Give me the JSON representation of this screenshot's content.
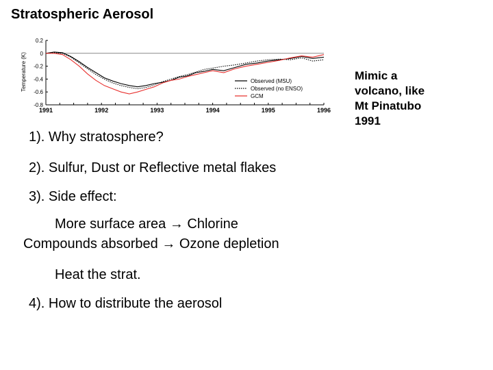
{
  "slide": {
    "title": "Stratospheric Aerosol",
    "side_note": [
      "Mimic a",
      "volcano, like",
      "Mt Pinatubo",
      "1991"
    ],
    "points": {
      "q1": "1). Why stratosphere?",
      "q2": "2). Sulfur, Dust or Reflective metal flakes",
      "q3": "3). Side effect:",
      "q3a": "More surface area → Chlorine",
      "q3b": "Compounds absorbed → Ozone depletion",
      "q3c": "Heat the strat.",
      "q4": "4). How to distribute the aerosol"
    }
  },
  "chart_data": {
    "type": "line",
    "ylabel": "Temperature (K)",
    "xlim": [
      1991.0,
      1996.0
    ],
    "ylim": [
      -0.8,
      0.2
    ],
    "xticks": [
      1991,
      1992,
      1993,
      1994,
      1995,
      1996
    ],
    "yticks": [
      0.2,
      0,
      -0.2,
      -0.4,
      -0.6,
      -0.8
    ],
    "ytick_labels": [
      "0.2",
      "0",
      "-0.2",
      "-0.4",
      "-0.6",
      "-0.8"
    ],
    "reference_line": 0,
    "legend_position": "bottom-right",
    "colors": {
      "observed": "#000000",
      "gcm": "#e8302e",
      "zero_line": "#888888"
    },
    "series": [
      {
        "name": "Observed (MSU)",
        "style": "solid",
        "color": "#000000",
        "x": [
          1991.0,
          1991.15,
          1991.3,
          1991.45,
          1991.6,
          1991.75,
          1991.9,
          1992.05,
          1992.2,
          1992.35,
          1992.5,
          1992.65,
          1992.8,
          1992.95,
          1993.1,
          1993.25,
          1993.4,
          1993.55,
          1993.7,
          1993.85,
          1994.0,
          1994.2,
          1994.4,
          1994.6,
          1994.8,
          1995.0,
          1995.2,
          1995.4,
          1995.6,
          1995.8,
          1996.0
        ],
        "y": [
          0.0,
          0.02,
          0.01,
          -0.05,
          -0.13,
          -0.22,
          -0.3,
          -0.38,
          -0.43,
          -0.47,
          -0.5,
          -0.52,
          -0.5,
          -0.47,
          -0.45,
          -0.42,
          -0.37,
          -0.35,
          -0.3,
          -0.28,
          -0.25,
          -0.27,
          -0.22,
          -0.17,
          -0.15,
          -0.12,
          -0.1,
          -0.08,
          -0.05,
          -0.08,
          -0.06
        ]
      },
      {
        "name": "Observed (no ENSO)",
        "style": "dotted",
        "color": "#000000",
        "x": [
          1991.0,
          1991.15,
          1991.3,
          1991.45,
          1991.6,
          1991.75,
          1991.9,
          1992.05,
          1992.2,
          1992.35,
          1992.5,
          1992.65,
          1992.8,
          1992.95,
          1993.1,
          1993.25,
          1993.4,
          1993.55,
          1993.7,
          1993.85,
          1994.0,
          1994.2,
          1994.4,
          1994.6,
          1994.8,
          1995.0,
          1995.2,
          1995.4,
          1995.6,
          1995.8,
          1996.0
        ],
        "y": [
          0.0,
          0.01,
          0.0,
          -0.06,
          -0.15,
          -0.24,
          -0.33,
          -0.4,
          -0.46,
          -0.5,
          -0.53,
          -0.55,
          -0.53,
          -0.49,
          -0.44,
          -0.4,
          -0.36,
          -0.33,
          -0.29,
          -0.25,
          -0.23,
          -0.2,
          -0.18,
          -0.15,
          -0.12,
          -0.1,
          -0.09,
          -0.1,
          -0.07,
          -0.12,
          -0.1
        ]
      },
      {
        "name": "GCM",
        "style": "solid",
        "color": "#e8302e",
        "x": [
          1991.0,
          1991.15,
          1991.3,
          1991.45,
          1991.6,
          1991.75,
          1991.9,
          1992.05,
          1992.2,
          1992.35,
          1992.5,
          1992.65,
          1992.8,
          1992.95,
          1993.1,
          1993.25,
          1993.4,
          1993.55,
          1993.7,
          1993.85,
          1994.0,
          1994.2,
          1994.4,
          1994.6,
          1994.8,
          1995.0,
          1995.2,
          1995.4,
          1995.6,
          1995.8,
          1996.0
        ],
        "y": [
          0.0,
          0.0,
          -0.02,
          -0.1,
          -0.2,
          -0.32,
          -0.42,
          -0.5,
          -0.55,
          -0.6,
          -0.63,
          -0.6,
          -0.56,
          -0.52,
          -0.46,
          -0.42,
          -0.4,
          -0.36,
          -0.33,
          -0.3,
          -0.27,
          -0.3,
          -0.24,
          -0.2,
          -0.17,
          -0.14,
          -0.11,
          -0.07,
          -0.04,
          -0.06,
          -0.02
        ]
      }
    ]
  }
}
